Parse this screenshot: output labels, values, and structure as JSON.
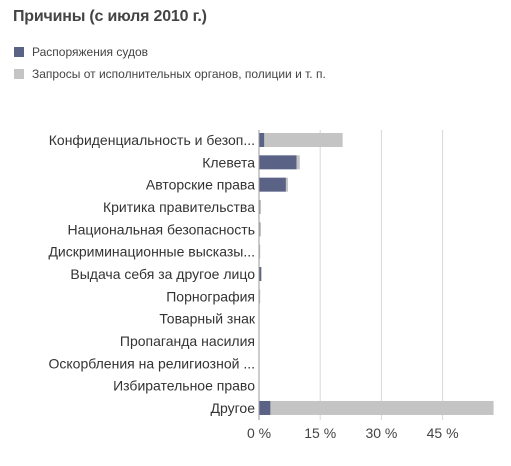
{
  "title": "Причины (с июля 2010 г.)",
  "colors": {
    "court_orders": "#5a6285",
    "other_requests": "#c4c4c4",
    "grid": "#d8d8d8",
    "axis": "#999999"
  },
  "chart_data": {
    "type": "bar",
    "orientation": "horizontal",
    "stacked": true,
    "title": "Причины (с июля 2010 г.)",
    "xlabel": "",
    "ylabel": "",
    "xlim": [
      0,
      58
    ],
    "xticks": [
      0,
      15,
      30,
      45
    ],
    "xtick_labels": [
      "0 %",
      "15 %",
      "30 %",
      "45 %"
    ],
    "grid": true,
    "legend_position": "top-left",
    "categories": [
      "Конфиденциальность и безоп...",
      "Клевета",
      "Авторские права",
      "Критика правительства",
      "Национальная безопасность",
      "Дискриминационные высказы...",
      "Выдача себя за другое лицо",
      "Порнография",
      "Товарный знак",
      "Пропаганда насилия",
      "Оскорбления на религиозной ...",
      "Избирательное право",
      "Другое"
    ],
    "series": [
      {
        "name": "Распоряжения судов",
        "color": "#5a6285",
        "values": [
          1.3,
          9.2,
          6.6,
          0.2,
          0.2,
          0.1,
          0.5,
          0.1,
          0.1,
          0.1,
          0.1,
          0.1,
          2.8
        ]
      },
      {
        "name": "Запросы от исполнительных органов, полиции и т. п.",
        "color": "#c4c4c4",
        "values": [
          19.2,
          0.8,
          0.5,
          0.3,
          0.3,
          0.2,
          0.2,
          0.2,
          0.0,
          0.0,
          0.0,
          0.0,
          54.7
        ]
      }
    ]
  }
}
